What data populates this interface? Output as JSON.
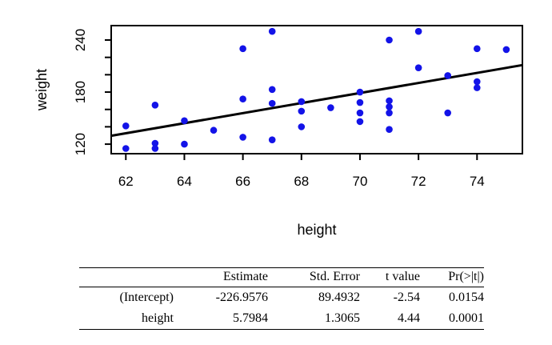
{
  "chart_data": {
    "type": "scatter",
    "title": "",
    "xlabel": "height",
    "ylabel": "weight",
    "x_ticks": [
      62,
      64,
      66,
      68,
      70,
      72,
      74
    ],
    "y_ticks": [
      120,
      140,
      160,
      180,
      200,
      220,
      240
    ],
    "y_labeled_ticks": [
      120,
      180,
      240
    ],
    "xlim": [
      61.5,
      75.55
    ],
    "ylim": [
      109,
      256.6
    ],
    "grid": false,
    "legend": "none",
    "point_color": "#1313e8",
    "line_color": "#000000",
    "points": [
      [
        62,
        141
      ],
      [
        62,
        115
      ],
      [
        63,
        165
      ],
      [
        63,
        121
      ],
      [
        63,
        115
      ],
      [
        64,
        147
      ],
      [
        64,
        120
      ],
      [
        65,
        136
      ],
      [
        66,
        230
      ],
      [
        66,
        172
      ],
      [
        66,
        128
      ],
      [
        67,
        250
      ],
      [
        67,
        183
      ],
      [
        67,
        167
      ],
      [
        67,
        125
      ],
      [
        68,
        169
      ],
      [
        68,
        158
      ],
      [
        68,
        140
      ],
      [
        69,
        162
      ],
      [
        70,
        180
      ],
      [
        70,
        168
      ],
      [
        70,
        156
      ],
      [
        70,
        146
      ],
      [
        71,
        240
      ],
      [
        71,
        170
      ],
      [
        71,
        163
      ],
      [
        71,
        156
      ],
      [
        71,
        137
      ],
      [
        72,
        250
      ],
      [
        72,
        208
      ],
      [
        73,
        199
      ],
      [
        73,
        156
      ],
      [
        74,
        230
      ],
      [
        74,
        192
      ],
      [
        74,
        185
      ],
      [
        75,
        229
      ]
    ],
    "regression_line": {
      "intercept": -226.9576,
      "slope": 5.7984
    }
  },
  "table": {
    "headers": [
      "",
      "Estimate",
      "Std. Error",
      "t value",
      "Pr(>|t|)"
    ],
    "rows": [
      [
        "(Intercept)",
        "-226.9576",
        "89.4932",
        "-2.54",
        "0.0154"
      ],
      [
        "height",
        "5.7984",
        "1.3065",
        "4.44",
        "0.0001"
      ]
    ]
  }
}
